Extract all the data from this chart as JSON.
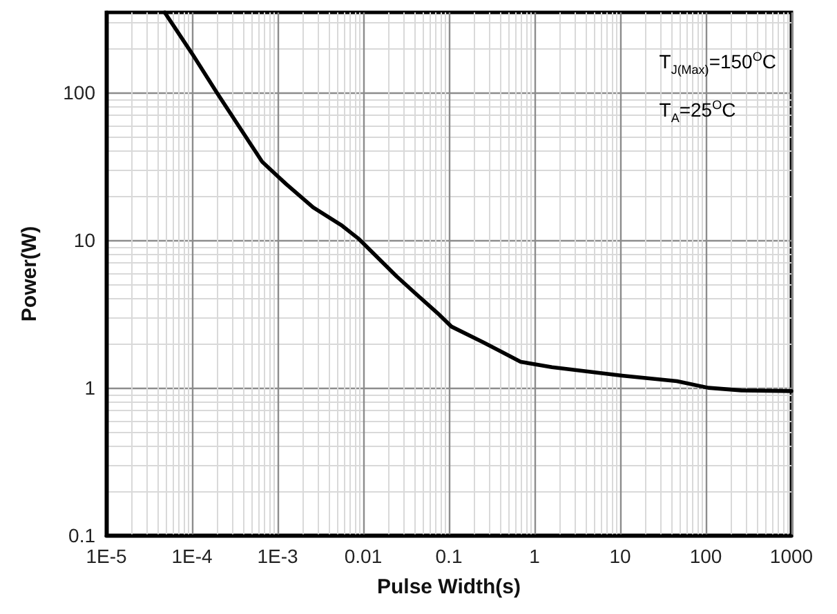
{
  "chart_data": {
    "type": "line",
    "xlabel": "Pulse Width(s)",
    "ylabel": "Power(W)",
    "log": "xy",
    "grid": true,
    "marker": "none",
    "line_style": "solid",
    "xlim": [
      1e-05,
      1000
    ],
    "ylim": [
      0.1,
      350
    ],
    "xticks": [
      {
        "value": 1e-05,
        "label": "1E-5"
      },
      {
        "value": 0.0001,
        "label": "1E-4"
      },
      {
        "value": 0.001,
        "label": "1E-3"
      },
      0.01,
      0.1,
      1,
      10,
      100,
      1000
    ],
    "yticks": [
      0.1,
      1,
      10,
      100
    ],
    "annotations": [
      "T$_{J(Max)}$=150$^{O}$C",
      "T$_{A}$=25$^{O}$C"
    ],
    "series": [
      {
        "color": "#000000",
        "x": [
          4.8e-05,
          0.000104,
          0.000195,
          0.00066,
          0.00126,
          0.0026,
          0.0055,
          0.0089,
          0.0245,
          0.04,
          0.074,
          0.107,
          0.25,
          0.69,
          1.6,
          10.5,
          46,
          107,
          260,
          1000
        ],
        "values": [
          350,
          178,
          100,
          34,
          24,
          16.7,
          12.7,
          10.2,
          5.7,
          4.4,
          3.2,
          2.6,
          2.04,
          1.5,
          1.38,
          1.21,
          1.11,
          1.0,
          0.96,
          0.95
        ]
      }
    ]
  }
}
